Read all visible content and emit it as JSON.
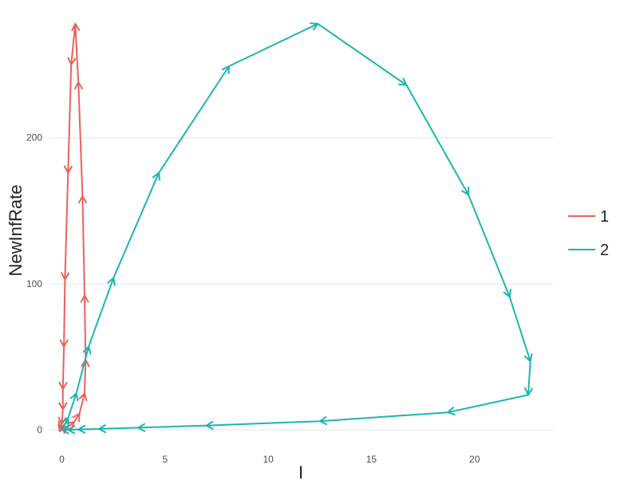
{
  "chart_data": {
    "type": "line",
    "title": "",
    "xlabel": "I",
    "ylabel": "NewInfRate",
    "xlim": [
      -0.6,
      23.8
    ],
    "ylim": [
      -7,
      279
    ],
    "x_ticks": [
      0,
      5,
      10,
      15,
      20
    ],
    "y_ticks": [
      0,
      100,
      200
    ],
    "x_tick_labels": [
      "0",
      "5",
      "10",
      "15",
      "20"
    ],
    "y_tick_labels": [
      "0",
      "100",
      "200"
    ],
    "grid": "horizontal major",
    "legend_position": "right",
    "arrows": "along path",
    "series": [
      {
        "name": "1",
        "color": "#E8625C",
        "points": [
          [
            0.0,
            0.0
          ],
          [
            0.1,
            0.5
          ],
          [
            0.3,
            2.0
          ],
          [
            0.6,
            5.5
          ],
          [
            0.85,
            11.0
          ],
          [
            1.1,
            25.0
          ],
          [
            1.15,
            48.0
          ],
          [
            1.1,
            92.0
          ],
          [
            1.0,
            160.0
          ],
          [
            0.8,
            238.0
          ],
          [
            0.65,
            278.0
          ],
          [
            0.45,
            250.0
          ],
          [
            0.3,
            176.0
          ],
          [
            0.15,
            103.0
          ],
          [
            0.1,
            57.0
          ],
          [
            0.05,
            28.0
          ],
          [
            0.05,
            14.0
          ],
          [
            0.0,
            4.0
          ],
          [
            -0.05,
            1.0
          ],
          [
            -0.1,
            -1.0
          ]
        ]
      },
      {
        "name": "2",
        "color": "#1CB5B0",
        "points": [
          [
            0.0,
            0.0
          ],
          [
            0.3,
            8.0
          ],
          [
            0.7,
            25.0
          ],
          [
            1.3,
            57.0
          ],
          [
            2.5,
            104.0
          ],
          [
            4.7,
            176.0
          ],
          [
            8.1,
            249.0
          ],
          [
            12.4,
            278.0
          ],
          [
            16.7,
            236.0
          ],
          [
            19.7,
            161.0
          ],
          [
            21.7,
            91.0
          ],
          [
            22.7,
            47.0
          ],
          [
            22.6,
            24.0
          ],
          [
            18.7,
            12.0
          ],
          [
            12.5,
            6.0
          ],
          [
            7.0,
            3.0
          ],
          [
            3.7,
            1.5
          ],
          [
            1.8,
            0.7
          ],
          [
            0.8,
            0.3
          ],
          [
            0.3,
            0.1
          ],
          [
            0.0,
            0.0
          ]
        ]
      }
    ]
  }
}
